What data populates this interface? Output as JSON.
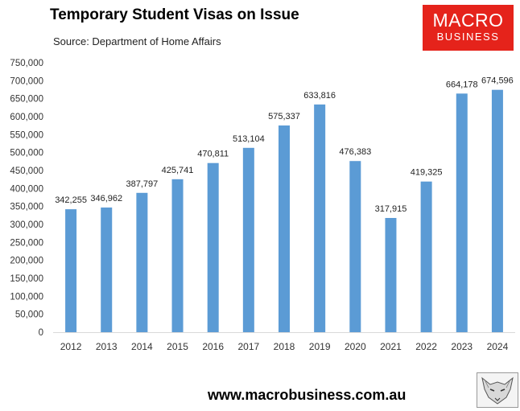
{
  "header": {
    "title": "Temporary Student Visas on Issue",
    "subtitle": "Source: Department of Home Affairs"
  },
  "logo": {
    "line1": "MACRO",
    "line2": "BUSINESS",
    "bg_color": "#e5231b"
  },
  "footer": {
    "url": "www.macrobusiness.com.au",
    "fox_icon": "fox-sketch-icon"
  },
  "chart_data": {
    "type": "bar",
    "title": "Temporary Student Visas on Issue",
    "categories": [
      "2012",
      "2013",
      "2014",
      "2015",
      "2016",
      "2017",
      "2018",
      "2019",
      "2020",
      "2021",
      "2022",
      "2023",
      "2024"
    ],
    "values": [
      342255,
      346962,
      387797,
      425741,
      470811,
      513104,
      575337,
      633816,
      476383,
      317915,
      419325,
      664178,
      674596
    ],
    "value_labels": [
      "342,255",
      "346,962",
      "387,797",
      "425,741",
      "470,811",
      "513,104",
      "575,337",
      "633,816",
      "476,383",
      "317,915",
      "419,325",
      "664,178",
      "674,596"
    ],
    "ylim": [
      0,
      750000
    ],
    "yticks": [
      "0",
      "50,000",
      "100,000",
      "150,000",
      "200,000",
      "250,000",
      "300,000",
      "350,000",
      "400,000",
      "450,000",
      "500,000",
      "550,000",
      "600,000",
      "650,000",
      "700,000",
      "750,000"
    ],
    "grid": false,
    "legend": "none",
    "bar_color": "#5b9bd5"
  }
}
